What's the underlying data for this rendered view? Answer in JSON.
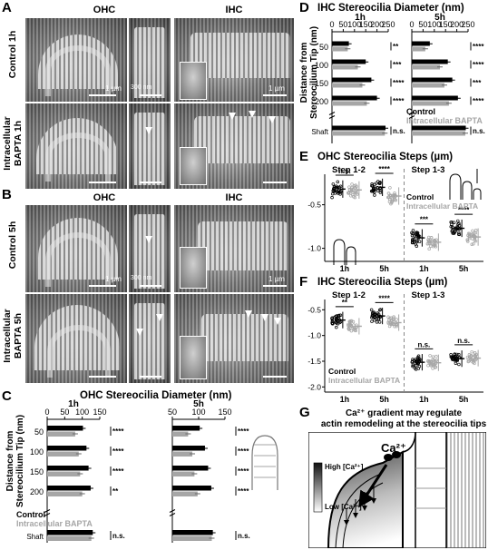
{
  "panels": {
    "A": {
      "label": "A",
      "col_ohc": "OHC",
      "col_ihc": "IHC",
      "row1": "Control 1h",
      "row2_l1": "Intracellular",
      "row2_l2": "BAPTA 1h",
      "scale_1um": "1 µm",
      "scale_300nm": "300 nm"
    },
    "B": {
      "label": "B",
      "col_ohc": "OHC",
      "col_ihc": "IHC",
      "row1": "Control 5h",
      "row2_l1": "Intracellular",
      "row2_l2": "BAPTA 5h",
      "scale_1um": "1 µm",
      "scale_300nm": "300 nm"
    },
    "C": {
      "label": "C",
      "title": "OHC Stereocilia Diameter (nm)",
      "ylabel_l1": "Distance from",
      "ylabel_l2": "Stereocilium Tip (nm)",
      "legend_control": "Control",
      "legend_bapta": "Intracellular BAPTA",
      "shaft": "Shaft"
    },
    "D": {
      "label": "D",
      "title": "IHC Stereocilia Diameter (nm)",
      "ylabel_l1": "Distance from",
      "ylabel_l2": "Stereocilium Tip (nm)",
      "legend_control": "Control",
      "legend_bapta": "Intracellular BAPTA",
      "shaft": "Shaft"
    },
    "E": {
      "label": "E",
      "title": "OHC Stereocilia Steps (µm)",
      "step12": "Step 1-2",
      "step13": "Step 1-3",
      "legend_control": "Control",
      "legend_bapta": "Intracellular BAPTA"
    },
    "F": {
      "label": "F",
      "title": "IHC Stereocilia Steps (µm)",
      "step12": "Step 1-2",
      "step13": "Step 1-3",
      "legend_control": "Control",
      "legend_bapta": "Intracellular BAPTA"
    },
    "G": {
      "label": "G",
      "title_l1": "Ca²⁺ gradient may regulate",
      "title_l2": "actin remodeling at the stereocilia tips",
      "high": "High [Ca²⁺]",
      "low": "Low [Ca²⁺]",
      "ca": "Ca²⁺"
    }
  },
  "colors": {
    "control": "#000000",
    "bapta": "#a6a6a6"
  },
  "chart_data": [
    {
      "type": "bar",
      "id": "C",
      "title": "OHC Stereocilia Diameter (nm)",
      "ylabel": "Distance from Stereocilium Tip (nm)",
      "categories": [
        "50",
        "100",
        "150",
        "200",
        "Shaft"
      ],
      "subplots": [
        {
          "name": "1h",
          "xticks": [
            "0",
            "50",
            "100",
            "150"
          ],
          "xlim": [
            0,
            150
          ],
          "series": [
            {
              "name": "Control",
              "values": [
                102,
                112,
                118,
                124,
                130
              ]
            },
            {
              "name": "Intracellular BAPTA",
              "values": [
                80,
                90,
                94,
                100,
                126
              ]
            }
          ],
          "significance": [
            "****",
            "****",
            "****",
            "**",
            "n.s."
          ]
        },
        {
          "name": "5h",
          "xticks": [
            "50",
            "100",
            "150"
          ],
          "xlim": [
            50,
            150
          ],
          "series": [
            {
              "name": "Control",
              "values": [
                102,
                112,
                118,
                124,
                127
              ]
            },
            {
              "name": "Intracellular BAPTA",
              "values": [
                80,
                88,
                92,
                98,
                125
              ]
            }
          ],
          "significance": [
            "****",
            "****",
            "****",
            "****",
            "n.s."
          ]
        }
      ]
    },
    {
      "type": "bar",
      "id": "D",
      "title": "IHC Stereocilia Diameter (nm)",
      "ylabel": "Distance from Stereocilium Tip (nm)",
      "categories": [
        "50",
        "100",
        "150",
        "200",
        "Shaft"
      ],
      "subplots": [
        {
          "name": "1h",
          "xticks": [
            "0",
            "50",
            "100",
            "150",
            "200",
            "250"
          ],
          "xlim": [
            0,
            250
          ],
          "series": [
            {
              "name": "Control",
              "values": [
                75,
                150,
                175,
                200,
                238
              ]
            },
            {
              "name": "Intracellular BAPTA",
              "values": [
                70,
                115,
                135,
                155,
                235
              ]
            }
          ],
          "significance": [
            "**",
            "***",
            "****",
            "****",
            "n.s."
          ]
        },
        {
          "name": "5h",
          "xticks": [
            "0",
            "50",
            "100",
            "150",
            "200",
            "250"
          ],
          "xlim": [
            0,
            250
          ],
          "series": [
            {
              "name": "Control",
              "values": [
                80,
                160,
                180,
                205,
                240
              ]
            },
            {
              "name": "Intracellular BAPTA",
              "values": [
                60,
                125,
                145,
                165,
                238
              ]
            }
          ],
          "significance": [
            "****",
            "****",
            "***",
            "****",
            "n.s."
          ]
        }
      ]
    },
    {
      "type": "scatter",
      "id": "E",
      "title": "OHC Stereocilia Steps (µm)",
      "groups": [
        "1h",
        "5h",
        "1h",
        "5h"
      ],
      "steps": [
        "Step 1-2",
        "Step 1-3"
      ],
      "yticks": [
        "-0.5",
        "-1.0"
      ],
      "ylim": [
        -1.15,
        -0.15
      ],
      "series": [
        {
          "name": "Control",
          "means": [
            -0.32,
            -0.3,
            -0.88,
            -0.77
          ]
        },
        {
          "name": "Intracellular BAPTA",
          "means": [
            -0.33,
            -0.4,
            -0.93,
            -0.87
          ]
        }
      ],
      "significance": [
        "n.s.",
        "****",
        "***",
        "****"
      ]
    },
    {
      "type": "scatter",
      "id": "F",
      "title": "IHC Stereocilia Steps (µm)",
      "groups": [
        "1h",
        "5h",
        "1h",
        "5h"
      ],
      "steps": [
        "Step 1-2",
        "Step 1-3"
      ],
      "yticks": [
        "-0.5",
        "-1.0",
        "-1.5",
        "-2.0"
      ],
      "ylim": [
        -2.1,
        -0.3
      ],
      "series": [
        {
          "name": "Control",
          "means": [
            -0.7,
            -0.62,
            -1.52,
            -1.45
          ]
        },
        {
          "name": "Intracellular BAPTA",
          "means": [
            -0.82,
            -0.75,
            -1.53,
            -1.44
          ]
        }
      ],
      "significance": [
        "**",
        "****",
        "n.s.",
        "n.s."
      ]
    }
  ]
}
